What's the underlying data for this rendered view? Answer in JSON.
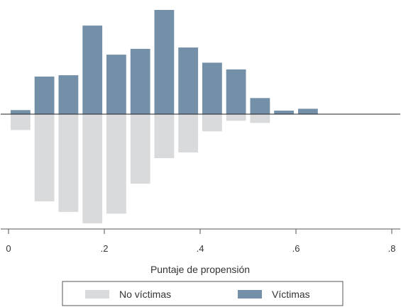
{
  "chart_data": {
    "type": "bar",
    "orientation": "mirrored-histogram",
    "bin_width": 0.05,
    "bin_centers": [
      0.025,
      0.075,
      0.125,
      0.175,
      0.225,
      0.275,
      0.325,
      0.375,
      0.425,
      0.475,
      0.525,
      0.575,
      0.625
    ],
    "series": [
      {
        "name": "Víctimas",
        "color": "#7390a8",
        "direction": "up",
        "values": [
          0.9,
          8.4,
          8.7,
          19.8,
          13.3,
          14.6,
          23.3,
          14.9,
          11.5,
          10.0,
          3.6,
          0.8,
          1.2
        ]
      },
      {
        "name": "No víctimas",
        "color": "#d9dadb",
        "direction": "down",
        "values": [
          3.6,
          19.8,
          22.2,
          24.8,
          22.6,
          15.8,
          10.0,
          8.7,
          3.9,
          1.5,
          2.0,
          0,
          0
        ]
      }
    ],
    "xlabel": "Puntaje de propensión",
    "xlim": [
      0,
      0.8
    ],
    "xticks": [
      0,
      0.2,
      0.4,
      0.6,
      0.8
    ],
    "xtick_labels": [
      "0",
      ".2",
      ".4",
      ".6",
      ".8"
    ],
    "ylim": [
      -27,
      24
    ],
    "yticks_shown": false,
    "grid": false,
    "legend": {
      "placement": "bottom",
      "entries": [
        "No víctimas",
        "Víctimas"
      ]
    }
  }
}
